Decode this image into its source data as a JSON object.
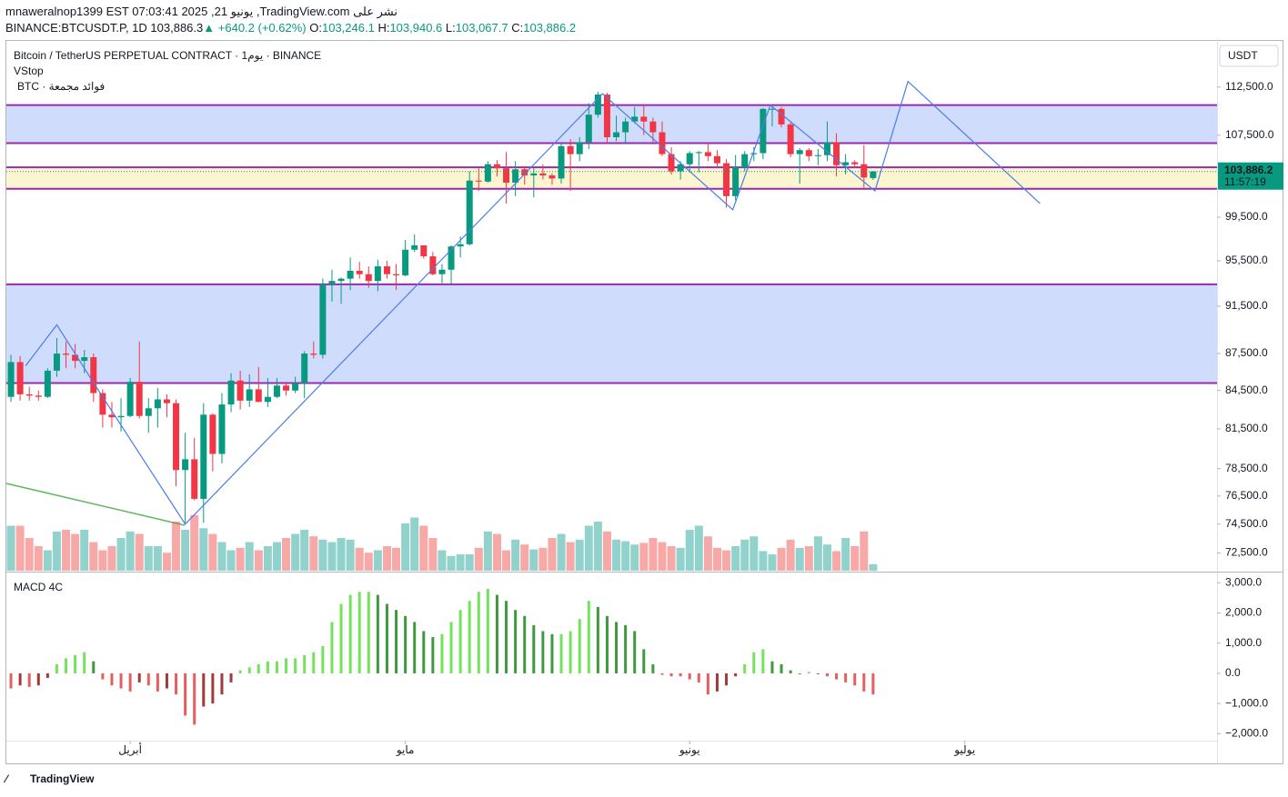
{
  "header": {
    "line1": "mnaweralnop1399 EST 07:03:41 2025 ,21 يونيو ,TradingView.com نشر على",
    "symbol": "BINANCE:BTCUSDT.P, 1D",
    "last": "103,886.3",
    "arrow": "▲",
    "change": "+640.2 (+0.62%)",
    "o_label": "O:",
    "o": "103,246.1",
    "h_label": "H:",
    "h": "103,940.6",
    "l_label": "L:",
    "l": "103,067.7",
    "c_label": "C:",
    "c": "103,886.2"
  },
  "legend": {
    "title": "Bitcoin / TetherUS PERPETUAL CONTRACT · 1يوم · BINANCE",
    "vstop": "VStop",
    "btc": "BTC · فوائد مجمعة",
    "macd": "MACD 4C"
  },
  "currency": "USDT",
  "price_box": {
    "price": "103,886.2",
    "time": "11:57:19"
  },
  "brand": "TradingView",
  "chart_data": [
    {
      "type": "candlestick",
      "log_scale": true,
      "xlim": [
        -0.5,
        131.5
      ],
      "ylim": [
        71300,
        117600
      ],
      "xticks": [
        {
          "value": 13,
          "label": "أبريل"
        },
        {
          "value": 43,
          "label": "مايو"
        },
        {
          "value": 74,
          "label": "يونيو"
        },
        {
          "value": 104,
          "label": "يوليو"
        }
      ],
      "yticks": [
        {
          "value": 112500,
          "label": "112,500.0"
        },
        {
          "value": 107500,
          "label": "107,500.0"
        },
        {
          "value": 99500,
          "label": "99,500.0"
        },
        {
          "value": 95500,
          "label": "95,500.0"
        },
        {
          "value": 91500,
          "label": "91,500.0"
        },
        {
          "value": 87500,
          "label": "87,500.0"
        },
        {
          "value": 84500,
          "label": "84,500.0"
        },
        {
          "value": 81500,
          "label": "81,500.0"
        },
        {
          "value": 78500,
          "label": "78,500.0"
        },
        {
          "value": 76500,
          "label": "76,500.0"
        },
        {
          "value": 74500,
          "label": "74,500.0"
        },
        {
          "value": 72500,
          "label": "72,500.0"
        }
      ],
      "up_color": "#089981",
      "down_color": "#f23645",
      "open": [
        84000,
        86800,
        84200,
        84100,
        84000,
        86100,
        87500,
        87400,
        86900,
        87200,
        84300,
        82600,
        82400,
        82500,
        85200,
        82500,
        83100,
        83800,
        83500,
        78400,
        79200,
        76300,
        82600,
        79600,
        83400,
        85300,
        83700,
        84600,
        83600,
        84000,
        84900,
        84500,
        85100,
        87500,
        87400,
        93400,
        93700,
        93900,
        94600,
        94300,
        93700,
        95000,
        94300,
        94200,
        96500,
        96900,
        95900,
        94300,
        94700,
        96800,
        97000,
        103000,
        102900,
        104600,
        104200,
        102800,
        104100,
        103500,
        103700,
        103500,
        103200,
        106400,
        105600,
        106800,
        109600,
        111700,
        107300,
        107800,
        108900,
        109400,
        108900,
        107800,
        105600,
        103900,
        104600,
        105700,
        105800,
        105400,
        104700,
        101500,
        104300,
        105600,
        105700,
        110200,
        110200,
        108600,
        105600,
        106000,
        105400,
        105500,
        106800,
        104500,
        104800,
        104600,
        103246.1
      ],
      "high": [
        87400,
        87300,
        84800,
        84500,
        86300,
        88800,
        88500,
        88300,
        87800,
        87500,
        84600,
        83600,
        83900,
        85500,
        88500,
        83900,
        84700,
        84200,
        83800,
        81200,
        80800,
        83500,
        82700,
        84300,
        85900,
        86100,
        85800,
        86400,
        85500,
        85500,
        85100,
        85600,
        87700,
        88500,
        93900,
        94700,
        94000,
        95800,
        95400,
        95000,
        95600,
        95500,
        95200,
        97400,
        97900,
        96900,
        96300,
        95200,
        96900,
        97700,
        103900,
        104200,
        104900,
        105000,
        105800,
        104900,
        104400,
        104200,
        104600,
        103700,
        106700,
        107100,
        107300,
        110800,
        112000,
        111900,
        109500,
        109300,
        110400,
        110700,
        109300,
        108900,
        106300,
        104900,
        105900,
        105900,
        106800,
        106000,
        105100,
        105500,
        105900,
        106300,
        110300,
        110400,
        110400,
        108800,
        106200,
        106200,
        106100,
        108900,
        107700,
        105600,
        105000,
        106500,
        103940.6
      ],
      "low": [
        83600,
        83700,
        83700,
        83700,
        83900,
        85600,
        86300,
        86300,
        85900,
        83600,
        81600,
        81600,
        81300,
        82400,
        82300,
        81200,
        81600,
        82400,
        77200,
        74500,
        76200,
        74600,
        78300,
        78900,
        82800,
        83000,
        83200,
        83600,
        83200,
        83900,
        84100,
        84300,
        83900,
        87100,
        87100,
        91900,
        91700,
        92900,
        93900,
        93100,
        92800,
        93900,
        92900,
        94100,
        96300,
        95700,
        94200,
        93500,
        93400,
        95800,
        96900,
        102000,
        102800,
        103400,
        100800,
        101500,
        102600,
        101400,
        103100,
        102600,
        102700,
        102000,
        104900,
        106100,
        109300,
        106700,
        106900,
        106600,
        108700,
        107500,
        106800,
        105400,
        103600,
        103100,
        103800,
        103800,
        104900,
        104200,
        100400,
        101100,
        103900,
        104900,
        105100,
        108400,
        108300,
        105300,
        102700,
        104900,
        104500,
        104900,
        103400,
        103600,
        104200,
        102300,
        103067.7
      ],
      "close": [
        86800,
        84200,
        84100,
        84000,
        86100,
        87500,
        87400,
        86900,
        87200,
        84300,
        82600,
        82400,
        82500,
        85200,
        82500,
        83100,
        83800,
        83500,
        78400,
        79200,
        76300,
        82600,
        79600,
        83400,
        85300,
        83700,
        84600,
        83600,
        84000,
        84900,
        84500,
        85100,
        87500,
        87400,
        93400,
        93700,
        93900,
        94600,
        94300,
        93700,
        95000,
        94300,
        94200,
        96500,
        96900,
        95900,
        94300,
        94700,
        96800,
        97000,
        103000,
        102900,
        104600,
        104200,
        102800,
        104100,
        103500,
        103700,
        103500,
        103200,
        106400,
        105600,
        106800,
        109600,
        111700,
        107300,
        107800,
        108900,
        109400,
        108900,
        107800,
        105600,
        103900,
        104600,
        105700,
        105800,
        105400,
        104700,
        101500,
        104300,
        105600,
        105700,
        110200,
        110200,
        108600,
        105600,
        106000,
        105400,
        105500,
        106800,
        104500,
        104800,
        104600,
        103300,
        103886.2
      ],
      "volume": {
        "ylim": [
          0,
          100
        ],
        "values": [
          55,
          55,
          40,
          30,
          25,
          48,
          50,
          45,
          50,
          35,
          25,
          30,
          40,
          48,
          45,
          30,
          30,
          22,
          60,
          50,
          68,
          52,
          45,
          35,
          25,
          28,
          35,
          25,
          30,
          35,
          40,
          45,
          50,
          42,
          38,
          35,
          40,
          38,
          28,
          22,
          25,
          30,
          28,
          58,
          65,
          55,
          40,
          25,
          18,
          20,
          20,
          28,
          48,
          45,
          25,
          38,
          32,
          26,
          28,
          40,
          45,
          35,
          38,
          55,
          60,
          48,
          38,
          36,
          32,
          34,
          40,
          35,
          30,
          28,
          50,
          55,
          42,
          28,
          25,
          30,
          38,
          42,
          24,
          20,
          28,
          38,
          28,
          30,
          42,
          32,
          24,
          40,
          30,
          48,
          8
        ]
      },
      "zones": [
        {
          "top": 110600,
          "bottom": 106700,
          "color": "#cfdcfc"
        },
        {
          "top": 104300,
          "bottom": 102200,
          "color": "#fbf6cf"
        },
        {
          "top": 93400,
          "bottom": 85100,
          "color": "#cfdcfc"
        }
      ],
      "zone_line_color": "#9c27b0",
      "zigzag": {
        "color": "#4a7de8",
        "x": [
          1.6,
          5,
          9.2,
          19,
          64.5,
          78.7,
          82.8,
          94.2,
          97.8,
          112.2
        ],
        "y": [
          86500,
          89900,
          84900,
          74500,
          111800,
          100200,
          110600,
          102000,
          113100,
          100800
        ]
      }
    },
    {
      "type": "histogram",
      "xlim": [
        -0.5,
        131.5
      ],
      "ylim": [
        -2230,
        3340
      ],
      "yticks": [
        {
          "value": 3000,
          "label": "3,000.0"
        },
        {
          "value": 2000,
          "label": "2,000.0"
        },
        {
          "value": 1000,
          "label": "1,000.0"
        },
        {
          "value": 0,
          "label": "0.0"
        },
        {
          "value": -1000,
          "label": "−1,000.0"
        },
        {
          "value": -2000,
          "label": "−2,000.0"
        }
      ],
      "colors": {
        "up_rising": "#72e35a",
        "up_falling": "#3f9a3f",
        "down_falling": "#e85d5d",
        "down_rising": "#a33a3a"
      },
      "values": [
        -500,
        -400,
        -450,
        -400,
        -150,
        300,
        500,
        600,
        700,
        400,
        -200,
        -400,
        -500,
        -600,
        -300,
        -400,
        -600,
        -500,
        -700,
        -1400,
        -1700,
        -1100,
        -1000,
        -700,
        -300,
        100,
        200,
        300,
        400,
        400,
        500,
        500,
        600,
        700,
        900,
        1700,
        2300,
        2600,
        2700,
        2700,
        2600,
        2300,
        2100,
        1900,
        1700,
        1400,
        1200,
        1300,
        1700,
        2100,
        2400,
        2700,
        2800,
        2600,
        2400,
        2100,
        1900,
        1600,
        1400,
        1300,
        1300,
        1400,
        1800,
        2400,
        2200,
        1900,
        1700,
        1600,
        1400,
        800,
        300,
        -50,
        -100,
        -100,
        -200,
        -300,
        -700,
        -600,
        -400,
        -100,
        300,
        700,
        800,
        400,
        300,
        100,
        0,
        50,
        0,
        -100,
        -200,
        -300,
        -400,
        -600,
        -700
      ]
    }
  ]
}
